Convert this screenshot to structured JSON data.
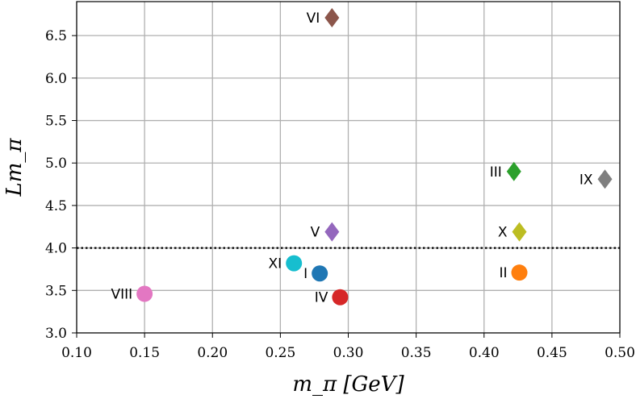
{
  "chart_data": {
    "type": "scatter",
    "title": "",
    "xlabel": "m_π [GeV]",
    "ylabel": "Lm_π",
    "xlim": [
      0.1,
      0.5
    ],
    "ylim": [
      3.0,
      6.9
    ],
    "xticks": [
      0.1,
      0.15,
      0.2,
      0.25,
      0.3,
      0.35,
      0.4,
      0.45,
      0.5
    ],
    "xtick_labels": [
      "0.10",
      "0.15",
      "0.20",
      "0.25",
      "0.30",
      "0.35",
      "0.40",
      "0.45",
      "0.50"
    ],
    "yticks": [
      3.0,
      3.5,
      4.0,
      4.5,
      5.0,
      5.5,
      6.0,
      6.5
    ],
    "ytick_labels": [
      "3.0",
      "3.5",
      "4.0",
      "4.5",
      "5.0",
      "5.5",
      "6.0",
      "6.5"
    ],
    "grid": true,
    "reference_line": {
      "y": 4.0,
      "style": "dotted"
    },
    "points": [
      {
        "label": "I",
        "x": 0.279,
        "y": 3.7,
        "marker": "circle",
        "color": "#1f77b4"
      },
      {
        "label": "II",
        "x": 0.426,
        "y": 3.71,
        "marker": "circle",
        "color": "#ff7f0e"
      },
      {
        "label": "III",
        "x": 0.422,
        "y": 4.9,
        "marker": "diamond",
        "color": "#2ca02c"
      },
      {
        "label": "IV",
        "x": 0.294,
        "y": 3.42,
        "marker": "circle",
        "color": "#d62728"
      },
      {
        "label": "V",
        "x": 0.288,
        "y": 4.19,
        "marker": "diamond",
        "color": "#9467bd"
      },
      {
        "label": "VI",
        "x": 0.288,
        "y": 6.71,
        "marker": "diamond",
        "color": "#8c564b"
      },
      {
        "label": "VIII",
        "x": 0.15,
        "y": 3.46,
        "marker": "circle",
        "color": "#e377c2"
      },
      {
        "label": "IX",
        "x": 0.489,
        "y": 4.81,
        "marker": "diamond",
        "color": "#7f7f7f"
      },
      {
        "label": "X",
        "x": 0.426,
        "y": 4.19,
        "marker": "diamond",
        "color": "#bcbd22"
      },
      {
        "label": "XI",
        "x": 0.26,
        "y": 3.82,
        "marker": "circle",
        "color": "#17becf"
      }
    ]
  }
}
